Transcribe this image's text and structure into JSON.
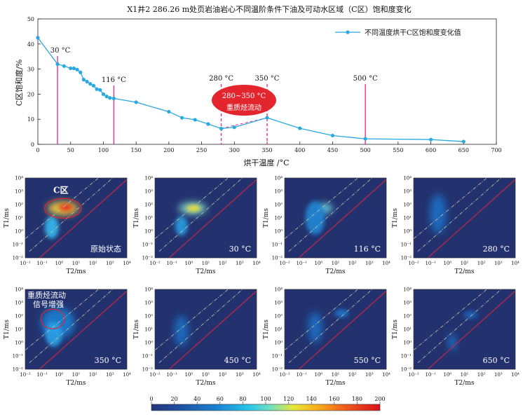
{
  "chart_data": [
    {
      "type": "line",
      "title": "X1井2 286.26 m处页岩油岩心不同温阶条件下油及可动水区域（C区）饱和度变化",
      "xlabel": "烘干温度 /°C",
      "ylabel": "C区饱和度/%",
      "xlim": [
        0,
        700
      ],
      "ylim": [
        0,
        50
      ],
      "xticks": [
        0,
        50,
        100,
        150,
        200,
        250,
        300,
        350,
        400,
        450,
        500,
        550,
        600,
        650,
        700
      ],
      "yticks": [
        0,
        10,
        20,
        30,
        40,
        50
      ],
      "grid": false,
      "legend_position": "top-right",
      "series": [
        {
          "name": "不同温度烘干C区饱和度变化值",
          "color": "#29a9e0",
          "x": [
            0,
            30,
            40,
            50,
            55,
            60,
            65,
            70,
            75,
            80,
            85,
            90,
            95,
            100,
            105,
            110,
            116,
            150,
            200,
            220,
            240,
            260,
            280,
            300,
            350,
            400,
            450,
            500,
            600,
            650
          ],
          "y": [
            42.5,
            32.0,
            31.2,
            30.3,
            30.3,
            29.8,
            28.7,
            25.8,
            25.0,
            24.1,
            23.4,
            22.0,
            21.7,
            20.0,
            19.1,
            18.5,
            18.3,
            16.8,
            13.0,
            10.6,
            9.8,
            8.1,
            6.3,
            6.8,
            10.6,
            6.4,
            3.5,
            2.2,
            1.9,
            1.1
          ]
        }
      ],
      "markers": [
        {
          "x": 30,
          "label": "30 °C",
          "color": "#e8318f"
        },
        {
          "x": 116,
          "label": "116 °C",
          "color": "#e8318f"
        },
        {
          "x": 280,
          "label": "280 °C",
          "color": "#e8318f",
          "dashed": true
        },
        {
          "x": 350,
          "label": "350 °C",
          "color": "#e8318f",
          "dashed": true
        },
        {
          "x": 500,
          "label": "500 °C",
          "color": "#e8318f"
        }
      ],
      "annotation": {
        "label_line1": "280~350 °C",
        "label_line2": "重质烃流动",
        "color": "#e3262d"
      }
    },
    {
      "type": "heatmap",
      "xlabel": "T2/ms",
      "ylabel": "T1/ms",
      "axis_ticks": [
        "10⁻²",
        "10⁻¹",
        "10⁰",
        "10¹",
        "10²",
        "10³",
        "10⁴"
      ],
      "panels": [
        {
          "label": "原始状态",
          "circle_label": "C区",
          "intensity": 1.0
        },
        {
          "label": "30 °C",
          "intensity": 0.8
        },
        {
          "label": "116 °C",
          "intensity": 0.45
        },
        {
          "label": "280 °C",
          "intensity": 0.22
        },
        {
          "label": "350 °C",
          "circle_label": "重质烃流动\n信号增强",
          "intensity": 0.4
        },
        {
          "label": "450 °C",
          "intensity": 0.2
        },
        {
          "label": "550 °C",
          "intensity": 0.18
        },
        {
          "label": "650 °C",
          "intensity": 0.12
        }
      ],
      "colorbar": {
        "min": 0,
        "max": 200,
        "ticks": [
          0,
          20,
          40,
          60,
          80,
          100,
          120,
          140,
          160,
          180,
          200
        ]
      }
    }
  ]
}
